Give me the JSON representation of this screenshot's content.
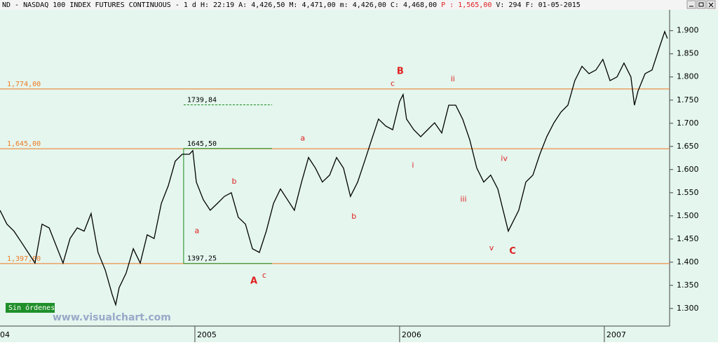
{
  "header": {
    "title": "ND - NASDAQ 100 INDEX FUTURES CONTINUOUS -  1 d H: 22:19 A: 4,426,50 M: 4,471,00 m: 4,426,00 C: 4,468,00",
    "price": "P : 1,565,00",
    "info": "V: 294 F: 01-05-2015"
  },
  "badge": "Sin órdenes",
  "watermark": "www.visualchart.com",
  "chart_data": {
    "type": "line",
    "color": "#000000",
    "background": "#e4f6ee",
    "x": [
      2004.048,
      2004.082,
      2004.116,
      2004.151,
      2004.185,
      2004.219,
      2004.253,
      2004.288,
      2004.322,
      2004.356,
      2004.39,
      2004.425,
      2004.459,
      2004.493,
      2004.527,
      2004.562,
      2004.596,
      2004.613,
      2004.63,
      2004.664,
      2004.699,
      2004.733,
      2004.767,
      2004.801,
      2004.836,
      2004.87,
      2004.904,
      2004.938,
      2004.973,
      2004.99,
      2005.007,
      2005.041,
      2005.075,
      2005.11,
      2005.144,
      2005.178,
      2005.212,
      2005.247,
      2005.281,
      2005.315,
      2005.349,
      2005.384,
      2005.418,
      2005.452,
      2005.486,
      2005.521,
      2005.555,
      2005.589,
      2005.623,
      2005.658,
      2005.692,
      2005.726,
      2005.76,
      2005.795,
      2005.829,
      2005.863,
      2005.897,
      2005.932,
      2005.966,
      2006.0,
      2006.017,
      2006.034,
      2006.069,
      2006.103,
      2006.137,
      2006.171,
      2006.206,
      2006.24,
      2006.274,
      2006.308,
      2006.343,
      2006.377,
      2006.411,
      2006.445,
      2006.48,
      2006.514,
      2006.531,
      2006.548,
      2006.582,
      2006.617,
      2006.651,
      2006.685,
      2006.719,
      2006.754,
      2006.788,
      2006.822,
      2006.856,
      2006.891,
      2006.925,
      2006.959,
      2006.993,
      2007.028,
      2007.062,
      2007.096,
      2007.13,
      2007.147,
      2007.165,
      2007.199,
      2007.233,
      2007.267,
      2007.295,
      2007.308
    ],
    "values": [
      1512,
      1482,
      1467,
      1444,
      1421,
      1398,
      1482,
      1474,
      1436,
      1398,
      1451,
      1474,
      1467,
      1505,
      1421,
      1383,
      1330,
      1308,
      1345,
      1376,
      1429,
      1398,
      1459,
      1451,
      1527,
      1565,
      1618,
      1633,
      1633,
      1641,
      1573,
      1535,
      1512,
      1527,
      1542,
      1550,
      1497,
      1482,
      1429,
      1421,
      1467,
      1527,
      1558,
      1535,
      1512,
      1573,
      1626,
      1603,
      1573,
      1588,
      1626,
      1603,
      1542,
      1573,
      1618,
      1664,
      1709,
      1694,
      1686,
      1747,
      1762,
      1709,
      1686,
      1671,
      1686,
      1701,
      1679,
      1739,
      1739,
      1709,
      1664,
      1603,
      1573,
      1588,
      1558,
      1497,
      1467,
      1482,
      1512,
      1573,
      1588,
      1633,
      1671,
      1701,
      1724,
      1739,
      1792,
      1823,
      1807,
      1815,
      1838,
      1792,
      1800,
      1830,
      1800,
      1739,
      1770,
      1807,
      1815,
      1861,
      1898,
      1883
    ],
    "xlim": [
      2004.048,
      2007.319
    ],
    "xticks": [
      {
        "value": 2004,
        "label": "04"
      },
      2005,
      2006,
      2007
    ],
    "ylim": [
      1262,
      1945
    ],
    "yticks": [
      {
        "value": 1300,
        "label": "1.300"
      },
      {
        "value": 1350,
        "label": "1.350"
      },
      {
        "value": 1400,
        "label": "1.400"
      },
      {
        "value": 1450,
        "label": "1.450"
      },
      {
        "value": 1500,
        "label": "1.500"
      },
      {
        "value": 1550,
        "label": "1.550"
      },
      {
        "value": 1600,
        "label": "1.600"
      },
      {
        "value": 1650,
        "label": "1.650"
      },
      {
        "value": 1700,
        "label": "1.700"
      },
      {
        "value": 1750,
        "label": "1.750"
      },
      {
        "value": 1800,
        "label": "1.800"
      },
      {
        "value": 1850,
        "label": "1.850"
      },
      {
        "value": 1900,
        "label": "1.900"
      }
    ],
    "levels_color": "#f07820",
    "levels": [
      {
        "value": 1774,
        "label": "1,774,00"
      },
      {
        "value": 1645,
        "label": "1,645,00"
      },
      {
        "value": 1397,
        "label": "1,397,00"
      }
    ],
    "fib_color": "#1a8a1a",
    "fib_x": [
      2004.945,
      2005.377
    ],
    "fib_levels": [
      {
        "value": 1645.5,
        "label": "1645,50",
        "style": "solid"
      },
      {
        "value": 1739.84,
        "label": "1739,84",
        "style": "dashed"
      },
      {
        "value": 1397.25,
        "label": "1397,25",
        "style": "solid"
      }
    ],
    "annotation_color": "#e02020",
    "annotations": [
      {
        "text": "B",
        "x": 2006.003,
        "y": 1812,
        "bold": true
      },
      {
        "text": "c",
        "x": 2005.966,
        "y": 1785,
        "bold": false
      },
      {
        "text": "ii",
        "x": 2006.26,
        "y": 1795,
        "bold": false
      },
      {
        "text": "a",
        "x": 2005.527,
        "y": 1667,
        "bold": false
      },
      {
        "text": "i",
        "x": 2006.065,
        "y": 1609,
        "bold": false
      },
      {
        "text": "iv",
        "x": 2006.511,
        "y": 1623,
        "bold": false
      },
      {
        "text": "b",
        "x": 2005.192,
        "y": 1574,
        "bold": false
      },
      {
        "text": "iii",
        "x": 2006.312,
        "y": 1535,
        "bold": false
      },
      {
        "text": "b",
        "x": 2005.777,
        "y": 1498,
        "bold": false
      },
      {
        "text": "a",
        "x": 2005.01,
        "y": 1467,
        "bold": false
      },
      {
        "text": "v",
        "x": 2006.449,
        "y": 1430,
        "bold": false
      },
      {
        "text": "C",
        "x": 2006.552,
        "y": 1423,
        "bold": true
      },
      {
        "text": "A",
        "x": 2005.288,
        "y": 1359,
        "bold": true
      },
      {
        "text": "c",
        "x": 2005.339,
        "y": 1371,
        "bold": false
      }
    ]
  }
}
